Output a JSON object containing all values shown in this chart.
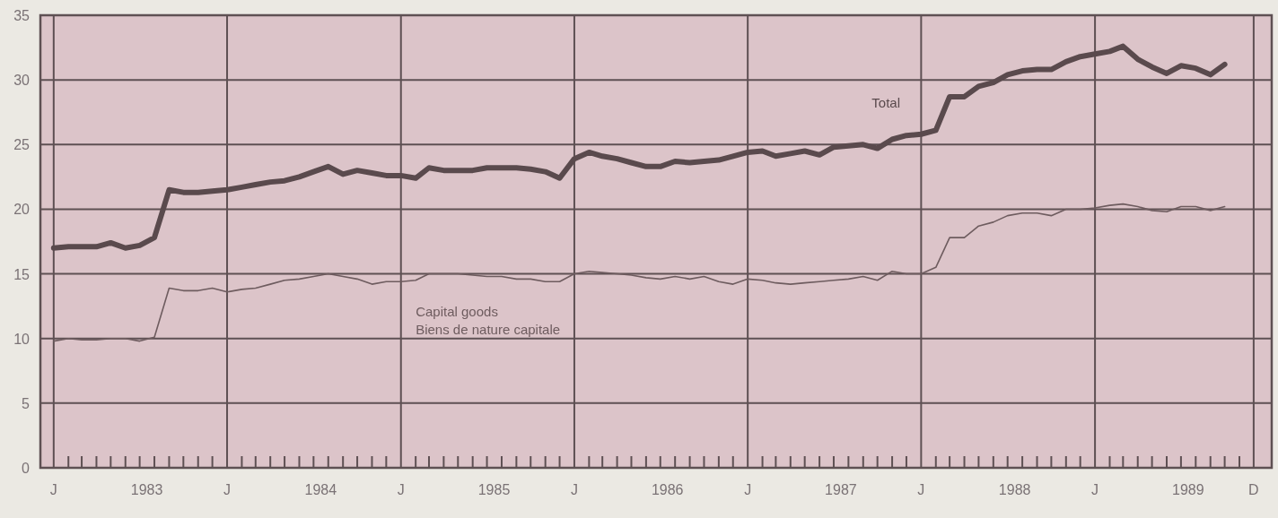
{
  "chart_data": {
    "type": "line",
    "grid": true,
    "legend": false,
    "marker": "none",
    "line_style": "solid",
    "x": [
      "1983-01",
      "1983-02",
      "1983-03",
      "1983-04",
      "1983-05",
      "1983-06",
      "1983-07",
      "1983-08",
      "1983-09",
      "1983-10",
      "1983-11",
      "1983-12",
      "1984-01",
      "1984-02",
      "1984-03",
      "1984-04",
      "1984-05",
      "1984-06",
      "1984-07",
      "1984-08",
      "1984-09",
      "1984-10",
      "1984-11",
      "1984-12",
      "1985-01",
      "1985-02",
      "1985-03",
      "1985-04",
      "1985-05",
      "1985-06",
      "1985-07",
      "1985-08",
      "1985-09",
      "1985-10",
      "1985-11",
      "1985-12",
      "1986-01",
      "1986-02",
      "1986-03",
      "1986-04",
      "1986-05",
      "1986-06",
      "1986-07",
      "1986-08",
      "1986-09",
      "1986-10",
      "1986-11",
      "1986-12",
      "1987-01",
      "1987-02",
      "1987-03",
      "1987-04",
      "1987-05",
      "1987-06",
      "1987-07",
      "1987-08",
      "1987-09",
      "1987-10",
      "1987-11",
      "1987-12",
      "1988-01",
      "1988-02",
      "1988-03",
      "1988-04",
      "1988-05",
      "1988-06",
      "1988-07",
      "1988-08",
      "1988-09",
      "1988-10",
      "1988-11",
      "1988-12",
      "1989-01",
      "1989-02",
      "1989-03",
      "1989-04",
      "1989-05",
      "1989-06",
      "1989-07",
      "1989-08",
      "1989-09",
      "1989-10"
    ],
    "series": [
      {
        "name": "Total",
        "color": "#5a4a4d",
        "values": [
          17.0,
          17.1,
          17.1,
          17.1,
          17.4,
          17.0,
          17.2,
          17.8,
          21.5,
          21.3,
          21.3,
          21.4,
          21.5,
          21.7,
          21.9,
          22.1,
          22.2,
          22.5,
          22.9,
          23.3,
          22.7,
          23.0,
          22.8,
          22.6,
          22.6,
          22.4,
          23.2,
          23.0,
          23.0,
          23.0,
          23.2,
          23.2,
          23.2,
          23.1,
          22.9,
          22.4,
          23.9,
          24.4,
          24.1,
          23.9,
          23.6,
          23.3,
          23.3,
          23.7,
          23.6,
          23.7,
          23.8,
          24.1,
          24.4,
          24.5,
          24.1,
          24.3,
          24.5,
          24.2,
          24.8,
          24.9,
          25.0,
          24.7,
          25.4,
          25.7,
          25.8,
          26.1,
          28.7,
          28.7,
          29.5,
          29.8,
          30.4,
          30.7,
          30.8,
          30.8,
          31.4,
          31.8,
          32.0,
          32.2,
          32.6,
          31.6,
          31.0,
          30.5,
          31.1,
          30.9,
          30.4,
          31.2
        ]
      },
      {
        "name": "Capital goods\nBiens de nature capitale",
        "color": "#6e5c5f",
        "values": [
          9.8,
          10.0,
          9.9,
          9.9,
          10.0,
          10.0,
          9.8,
          10.1,
          13.9,
          13.7,
          13.7,
          13.9,
          13.6,
          13.8,
          13.9,
          14.2,
          14.5,
          14.6,
          14.8,
          15.0,
          14.8,
          14.6,
          14.2,
          14.4,
          14.4,
          14.5,
          15.0,
          15.0,
          15.0,
          14.9,
          14.8,
          14.8,
          14.6,
          14.6,
          14.4,
          14.4,
          15.0,
          15.2,
          15.1,
          15.0,
          14.9,
          14.7,
          14.6,
          14.8,
          14.6,
          14.8,
          14.4,
          14.2,
          14.6,
          14.5,
          14.3,
          14.2,
          14.3,
          14.4,
          14.5,
          14.6,
          14.8,
          14.5,
          15.2,
          15.0,
          15.0,
          15.5,
          17.8,
          17.8,
          18.7,
          19.0,
          19.5,
          19.7,
          19.7,
          19.5,
          20.0,
          20.0,
          20.1,
          20.3,
          20.4,
          20.2,
          19.9,
          19.8,
          20.2,
          20.2,
          19.9,
          20.2
        ]
      }
    ],
    "ylim": [
      0,
      35
    ],
    "yticks": [
      0,
      5,
      10,
      15,
      20,
      25,
      30,
      35
    ],
    "xlim": [
      "1982-12-04",
      "1990-01-08"
    ],
    "xticks": [
      {
        "value": "1983-01",
        "label": "J"
      },
      {
        "value": "1983-02",
        "label": null
      },
      {
        "value": "1983-03",
        "label": null
      },
      {
        "value": "1983-04",
        "label": null
      },
      {
        "value": "1983-05",
        "label": null
      },
      {
        "value": "1983-06",
        "label": null
      },
      {
        "value": "1983-07",
        "label": null
      },
      {
        "value": "1983-08",
        "label": null
      },
      {
        "value": "1983-09",
        "label": null
      },
      {
        "value": "1983-10",
        "label": null
      },
      {
        "value": "1983-11",
        "label": null
      },
      {
        "value": "1983-12",
        "label": null
      },
      {
        "value": "1984-01",
        "label": "J"
      },
      {
        "value": "1984-02",
        "label": null
      },
      {
        "value": "1984-03",
        "label": null
      },
      {
        "value": "1984-04",
        "label": null
      },
      {
        "value": "1984-05",
        "label": null
      },
      {
        "value": "1984-06",
        "label": null
      },
      {
        "value": "1984-07",
        "label": null
      },
      {
        "value": "1984-08",
        "label": null
      },
      {
        "value": "1984-09",
        "label": null
      },
      {
        "value": "1984-10",
        "label": null
      },
      {
        "value": "1984-11",
        "label": null
      },
      {
        "value": "1984-12",
        "label": null
      },
      {
        "value": "1985-01",
        "label": "J"
      },
      {
        "value": "1985-02",
        "label": null
      },
      {
        "value": "1985-03",
        "label": null
      },
      {
        "value": "1985-04",
        "label": null
      },
      {
        "value": "1985-05",
        "label": null
      },
      {
        "value": "1985-06",
        "label": null
      },
      {
        "value": "1985-07",
        "label": null
      },
      {
        "value": "1985-08",
        "label": null
      },
      {
        "value": "1985-09",
        "label": null
      },
      {
        "value": "1985-10",
        "label": null
      },
      {
        "value": "1985-11",
        "label": null
      },
      {
        "value": "1985-12",
        "label": null
      },
      {
        "value": "1986-01",
        "label": "J"
      },
      {
        "value": "1986-02",
        "label": null
      },
      {
        "value": "1986-03",
        "label": null
      },
      {
        "value": "1986-04",
        "label": null
      },
      {
        "value": "1986-05",
        "label": null
      },
      {
        "value": "1986-06",
        "label": null
      },
      {
        "value": "1986-07",
        "label": null
      },
      {
        "value": "1986-08",
        "label": null
      },
      {
        "value": "1986-09",
        "label": null
      },
      {
        "value": "1986-10",
        "label": null
      },
      {
        "value": "1986-11",
        "label": null
      },
      {
        "value": "1986-12",
        "label": null
      },
      {
        "value": "1987-01",
        "label": "J"
      },
      {
        "value": "1987-02",
        "label": null
      },
      {
        "value": "1987-03",
        "label": null
      },
      {
        "value": "1987-04",
        "label": null
      },
      {
        "value": "1987-05",
        "label": null
      },
      {
        "value": "1987-06",
        "label": null
      },
      {
        "value": "1987-07",
        "label": null
      },
      {
        "value": "1987-08",
        "label": null
      },
      {
        "value": "1987-09",
        "label": null
      },
      {
        "value": "1987-10",
        "label": null
      },
      {
        "value": "1987-11",
        "label": null
      },
      {
        "value": "1987-12",
        "label": null
      },
      {
        "value": "1988-01",
        "label": "J"
      },
      {
        "value": "1988-02",
        "label": null
      },
      {
        "value": "1988-03",
        "label": null
      },
      {
        "value": "1988-04",
        "label": null
      },
      {
        "value": "1988-05",
        "label": null
      },
      {
        "value": "1988-06",
        "label": null
      },
      {
        "value": "1988-07",
        "label": null
      },
      {
        "value": "1988-08",
        "label": null
      },
      {
        "value": "1988-09",
        "label": null
      },
      {
        "value": "1988-10",
        "label": null
      },
      {
        "value": "1988-11",
        "label": null
      },
      {
        "value": "1988-12",
        "label": null
      },
      {
        "value": "1989-01",
        "label": "J"
      },
      {
        "value": "1989-02",
        "label": null
      },
      {
        "value": "1989-03",
        "label": null
      },
      {
        "value": "1989-04",
        "label": null
      },
      {
        "value": "1989-05",
        "label": null
      },
      {
        "value": "1989-06",
        "label": null
      },
      {
        "value": "1989-07",
        "label": null
      },
      {
        "value": "1989-08",
        "label": null
      },
      {
        "value": "1989-09",
        "label": null
      },
      {
        "value": "1989-10",
        "label": null
      },
      {
        "value": "1989-11",
        "label": null
      },
      {
        "value": "1989-12",
        "label": "D"
      },
      {
        "value": "1983-07-16",
        "label": "1983"
      },
      {
        "value": "1984-07-16",
        "label": "1984"
      },
      {
        "value": "1985-07-16",
        "label": "1985"
      },
      {
        "value": "1986-07-16",
        "label": "1986"
      },
      {
        "value": "1987-07-16",
        "label": "1987"
      },
      {
        "value": "1988-07-16",
        "label": "1988"
      },
      {
        "value": "1989-07-16",
        "label": "1989"
      }
    ]
  }
}
